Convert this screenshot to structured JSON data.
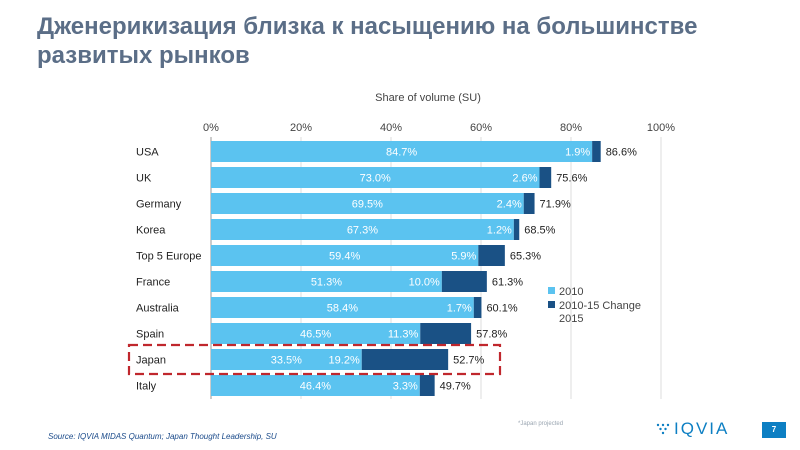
{
  "slide": {
    "title": "Дженерикизация близка к насыщению на большинстве развитых рынков",
    "source": "Source: IQVIA MIDAS Quantum; Japan Thought Leadership, SU",
    "footnote": "*Japan projected",
    "logo_text": "IQVIA",
    "page_number": "7"
  },
  "colors": {
    "base": "#5bc3f0",
    "change": "#1a5185",
    "highlight": "#c0272d",
    "title": "#5b6e87",
    "brand": "#0d7fc3"
  },
  "chart_data": {
    "type": "bar",
    "orientation": "horizontal",
    "stacked": true,
    "title": "Share of volume (SU)",
    "xlim": [
      0,
      100
    ],
    "ticks": [
      "0%",
      "20%",
      "40%",
      "60%",
      "80%",
      "100%"
    ],
    "tick_values": [
      0,
      20,
      40,
      60,
      80,
      100
    ],
    "categories": [
      "USA",
      "UK",
      "Germany",
      "Korea",
      "Top 5 Europe",
      "France",
      "Australia",
      "Spain",
      "Japan",
      "Italy"
    ],
    "series": [
      {
        "name": "2010",
        "values": [
          84.7,
          73.0,
          69.5,
          67.3,
          59.4,
          51.3,
          58.4,
          46.5,
          33.5,
          46.4
        ],
        "labels": [
          "84.7%",
          "73.0%",
          "69.5%",
          "67.3%",
          "59.4%",
          "51.3%",
          "58.4%",
          "46.5%",
          "33.5%",
          "46.4%"
        ]
      },
      {
        "name": "2010-15 Change 2015",
        "values": [
          1.9,
          2.6,
          2.4,
          1.2,
          5.9,
          10.0,
          1.7,
          11.3,
          19.2,
          3.3
        ],
        "labels": [
          "1.9%",
          "2.6%",
          "2.4%",
          "1.2%",
          "5.9%",
          "10.0%",
          "1.7%",
          "11.3%",
          "19.2%",
          "3.3%"
        ]
      }
    ],
    "totals": [
      86.6,
      75.6,
      71.9,
      68.5,
      65.3,
      61.3,
      60.1,
      57.8,
      52.7,
      49.7
    ],
    "total_labels": [
      "86.6%",
      "75.6%",
      "71.9%",
      "68.5%",
      "65.3%",
      "61.3%",
      "60.1%",
      "57.8%",
      "52.7%",
      "49.7%"
    ],
    "legend_position": "right",
    "highlight_category": "Japan"
  }
}
